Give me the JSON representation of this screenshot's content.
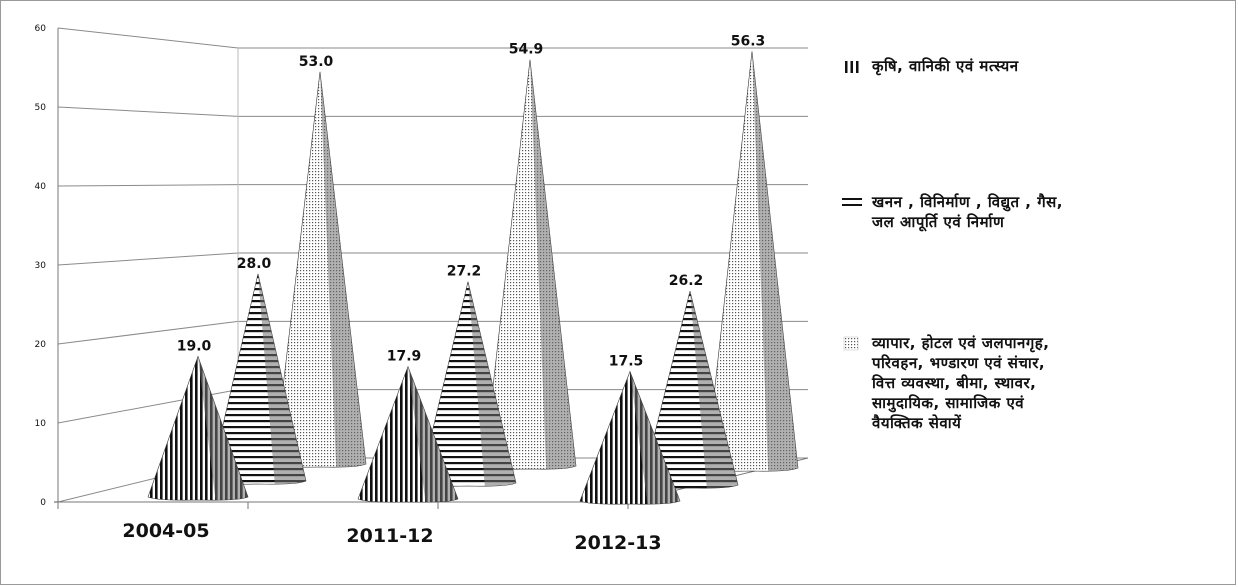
{
  "chart_data": {
    "type": "bar",
    "bar_shape": "3d-cone",
    "categories": [
      "2004-05",
      "2011-12",
      "2012-13"
    ],
    "series": [
      {
        "name": "कृषि, वानिकी एवं मत्स्यन",
        "values": [
          19.0,
          17.9,
          17.5
        ],
        "pattern": "vertical-stripes"
      },
      {
        "name": "खनन , विनिर्माण , विद्युत , गैस, जल आपूर्ति एवं निर्माण",
        "values": [
          28.0,
          27.2,
          26.2
        ],
        "pattern": "horizontal-stripes"
      },
      {
        "name": "व्यापार, होटल एवं जलपानगृह, परिवहन, भण्डारण एवं संचार, वित्त व्यवस्था, बीमा, स्थावर, सामुदायिक, सामाजिक एवं वैयक्तिक सेवायें",
        "values": [
          53.0,
          54.9,
          56.3
        ],
        "pattern": "dots"
      }
    ],
    "data_labels": [
      [
        "19.0",
        "17.9",
        "17.5"
      ],
      [
        "28.0",
        "27.2",
        "26.2"
      ],
      [
        "53.0",
        "54.9",
        "56.3"
      ]
    ],
    "yticks": [
      "0",
      "10",
      "20",
      "30",
      "40",
      "50",
      "60"
    ],
    "ylim": [
      0,
      60
    ],
    "title": "",
    "xlabel": "",
    "ylabel": "",
    "grid": true,
    "legend_position": "right"
  },
  "legend": {
    "items": [
      {
        "label_lines": [
          "कृषि, वानिकी एवं मत्स्यन"
        ]
      },
      {
        "label_lines": [
          "खनन , विनिर्माण , विद्युत , गैस,",
          "जल आपूर्ति एवं निर्माण"
        ]
      },
      {
        "label_lines": [
          "व्यापार, होटल एवं जलपानगृह,",
          "परिवहन, भण्डारण एवं संचार,",
          "वित्त व्यवस्था, बीमा, स्थावर,",
          "सामुदायिक, सामाजिक एवं",
          "वैयक्तिक सेवायें"
        ]
      }
    ]
  },
  "colors": {
    "ink": "#111111",
    "grid": "#8a8a8a",
    "shade": "#6f6f6f",
    "dot": "#555555"
  }
}
